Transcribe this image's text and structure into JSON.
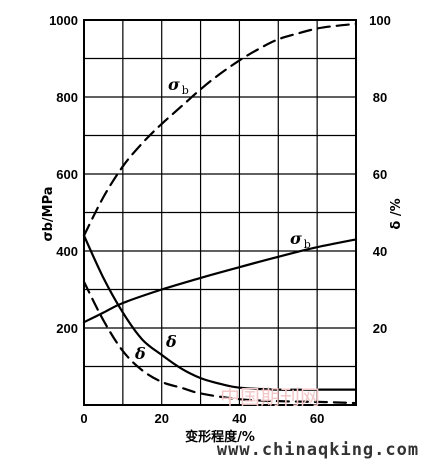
{
  "chart_data": {
    "type": "line",
    "title": "",
    "xlabel": "变形程度/%",
    "ylabel_left": "σb/MPa",
    "ylabel_right": "δ /%",
    "xlim": [
      0,
      70
    ],
    "ylim_left": [
      0,
      1000
    ],
    "ylim_right": [
      0,
      100
    ],
    "x_ticks": [
      "0",
      "20",
      "40",
      "60"
    ],
    "y_left_ticks": [
      "200",
      "400",
      "600",
      "800",
      "1000"
    ],
    "y_right_ticks": [
      "20",
      "40",
      "60",
      "80",
      "100"
    ],
    "grid": true,
    "series": [
      {
        "name": "σb",
        "label": "σ",
        "label_sub": "b",
        "axis": "left",
        "style": "dashed",
        "points": [
          [
            0,
            440
          ],
          [
            5,
            540
          ],
          [
            10,
            620
          ],
          [
            15,
            680
          ],
          [
            20,
            730
          ],
          [
            25,
            775
          ],
          [
            30,
            820
          ],
          [
            35,
            860
          ],
          [
            40,
            895
          ],
          [
            45,
            925
          ],
          [
            50,
            950
          ],
          [
            55,
            965
          ],
          [
            60,
            978
          ],
          [
            65,
            985
          ],
          [
            70,
            990
          ]
        ]
      },
      {
        "name": "σb",
        "label": "σ",
        "label_sub": "b",
        "axis": "left",
        "style": "solid",
        "points": [
          [
            0,
            215
          ],
          [
            5,
            240
          ],
          [
            10,
            265
          ],
          [
            20,
            300
          ],
          [
            30,
            330
          ],
          [
            40,
            358
          ],
          [
            50,
            385
          ],
          [
            60,
            410
          ],
          [
            70,
            430
          ]
        ]
      },
      {
        "name": "δ",
        "label": "δ",
        "axis": "right",
        "style": "solid",
        "points": [
          [
            0,
            44
          ],
          [
            5,
            33
          ],
          [
            10,
            24
          ],
          [
            15,
            17
          ],
          [
            20,
            13
          ],
          [
            25,
            9.5
          ],
          [
            30,
            7
          ],
          [
            35,
            5.5
          ],
          [
            40,
            4.5
          ],
          [
            50,
            4
          ],
          [
            60,
            4
          ],
          [
            70,
            4
          ]
        ]
      },
      {
        "name": "δ",
        "label": "δ",
        "axis": "right",
        "style": "dashed",
        "points": [
          [
            0,
            32
          ],
          [
            5,
            22
          ],
          [
            10,
            14
          ],
          [
            15,
            9
          ],
          [
            20,
            6
          ],
          [
            25,
            4.5
          ],
          [
            30,
            3
          ],
          [
            40,
            1.5
          ],
          [
            50,
            1
          ],
          [
            60,
            0.8
          ],
          [
            70,
            0.5
          ]
        ]
      }
    ]
  },
  "watermark": {
    "cn": "中国期刊网",
    "url": "www.chinaqking.com"
  }
}
